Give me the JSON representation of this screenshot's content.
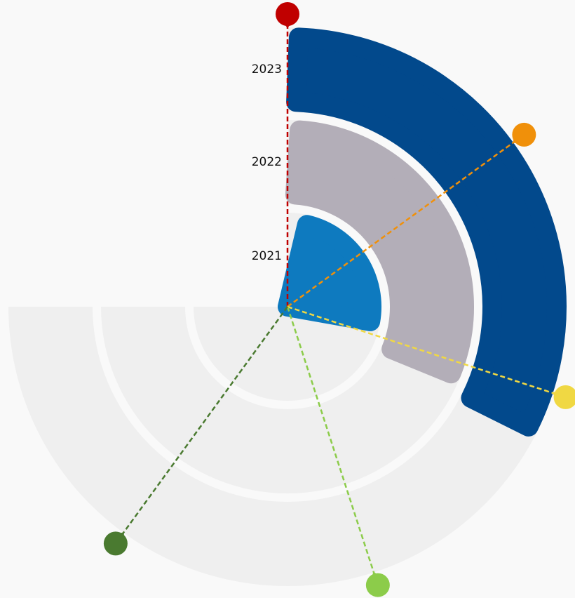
{
  "chart_data": {
    "type": "radial-bar",
    "categories": [
      "2021",
      "2022",
      "2023"
    ],
    "values": [
      42,
      43,
      44
    ],
    "colors": [
      "#0e7abf",
      "#b3aeb8",
      "#02498c"
    ],
    "xlim": [
      0,
      100
    ],
    "markers": [
      {
        "value": 0,
        "color": "#c00000"
      },
      {
        "value": 20,
        "color": "#f0900a"
      },
      {
        "value": 40,
        "color": "#f0d843"
      },
      {
        "value": 60,
        "color": "#8ccc4a"
      },
      {
        "value": 80,
        "color": "#4a7a30"
      }
    ]
  }
}
